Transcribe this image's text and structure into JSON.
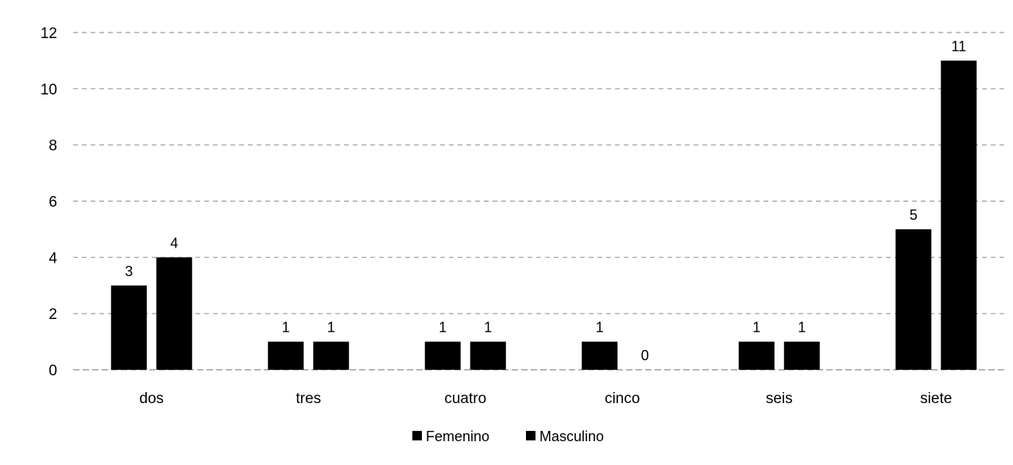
{
  "chart_data": {
    "type": "bar",
    "title": "",
    "xlabel": "",
    "ylabel": "",
    "categories": [
      "dos",
      "tres",
      "cuatro",
      "cinco",
      "seis",
      "siete"
    ],
    "series": [
      {
        "name": "Femenino",
        "values": [
          3,
          1,
          1,
          1,
          1,
          5
        ],
        "color": "#000000"
      },
      {
        "name": "Masculino",
        "values": [
          4,
          1,
          1,
          0,
          1,
          11
        ],
        "color": "#000000"
      }
    ],
    "ylim": [
      0,
      12
    ],
    "yticks": [
      0,
      2,
      4,
      6,
      8,
      10,
      12
    ],
    "grid": true,
    "data_labels": true,
    "legend_position": "bottom"
  }
}
